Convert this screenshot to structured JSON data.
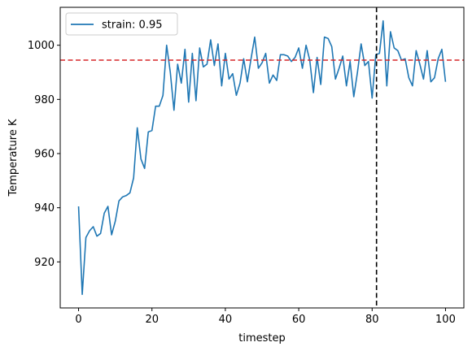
{
  "chart_data": {
    "type": "line",
    "xlabel": "timestep",
    "ylabel": "Temperature K",
    "xlim": [
      -5,
      105
    ],
    "ylim": [
      903,
      1014
    ],
    "xticks": [
      0,
      20,
      40,
      60,
      80,
      100
    ],
    "yticks": [
      920,
      940,
      960,
      980,
      1000
    ],
    "grid": false,
    "legend_position": "top-left",
    "series": [
      {
        "name": "strain: 0.95",
        "color": "#1f77b4",
        "x": [
          0,
          1,
          2,
          3,
          4,
          5,
          6,
          7,
          8,
          9,
          10,
          11,
          12,
          13,
          14,
          15,
          16,
          17,
          18,
          19,
          20,
          21,
          22,
          23,
          24,
          25,
          26,
          27,
          28,
          29,
          30,
          31,
          32,
          33,
          34,
          35,
          36,
          37,
          38,
          39,
          40,
          41,
          42,
          43,
          44,
          45,
          46,
          47,
          48,
          49,
          50,
          51,
          52,
          53,
          54,
          55,
          56,
          57,
          58,
          59,
          60,
          61,
          62,
          63,
          64,
          65,
          66,
          67,
          68,
          69,
          70,
          71,
          72,
          73,
          74,
          75,
          76,
          77,
          78,
          79,
          80,
          81,
          82,
          83,
          84,
          85,
          86,
          87,
          88,
          89,
          90,
          91,
          92,
          93,
          94,
          95,
          96,
          97,
          98,
          99,
          100
        ],
        "y": [
          940.5,
          908,
          929,
          931.5,
          933,
          929.5,
          930.5,
          938,
          940.5,
          930,
          935,
          942.5,
          944,
          944.5,
          945.5,
          951,
          969.5,
          958,
          954.5,
          968,
          968.5,
          977.5,
          977.5,
          981.5,
          1000,
          990,
          976,
          993,
          986,
          998.5,
          979,
          997,
          979.5,
          999,
          992,
          993,
          1002,
          992.5,
          1000.5,
          985,
          997,
          987.5,
          989.5,
          981.5,
          986,
          995,
          986.5,
          995,
          1003,
          991.5,
          993.5,
          997,
          986,
          989,
          987,
          996.5,
          996.5,
          996,
          994,
          995.5,
          999,
          991.5,
          1000,
          994.5,
          982.5,
          995.5,
          985.5,
          1003,
          1002.5,
          999.5,
          987.5,
          991.5,
          996,
          985,
          994,
          981,
          990,
          1000.5,
          992.5,
          994,
          980.5,
          996.5,
          997,
          1009,
          985,
          1005,
          999,
          998,
          994.5,
          995,
          988,
          985,
          998,
          993,
          987.5,
          998,
          986.5,
          988,
          995,
          998.5,
          986.5
        ]
      }
    ],
    "reference_lines": [
      {
        "orientation": "horizontal",
        "value": 994.5,
        "color": "#d62728",
        "style": "dashed"
      },
      {
        "orientation": "vertical",
        "value": 81.2,
        "color": "#000000",
        "style": "dashed"
      }
    ]
  }
}
